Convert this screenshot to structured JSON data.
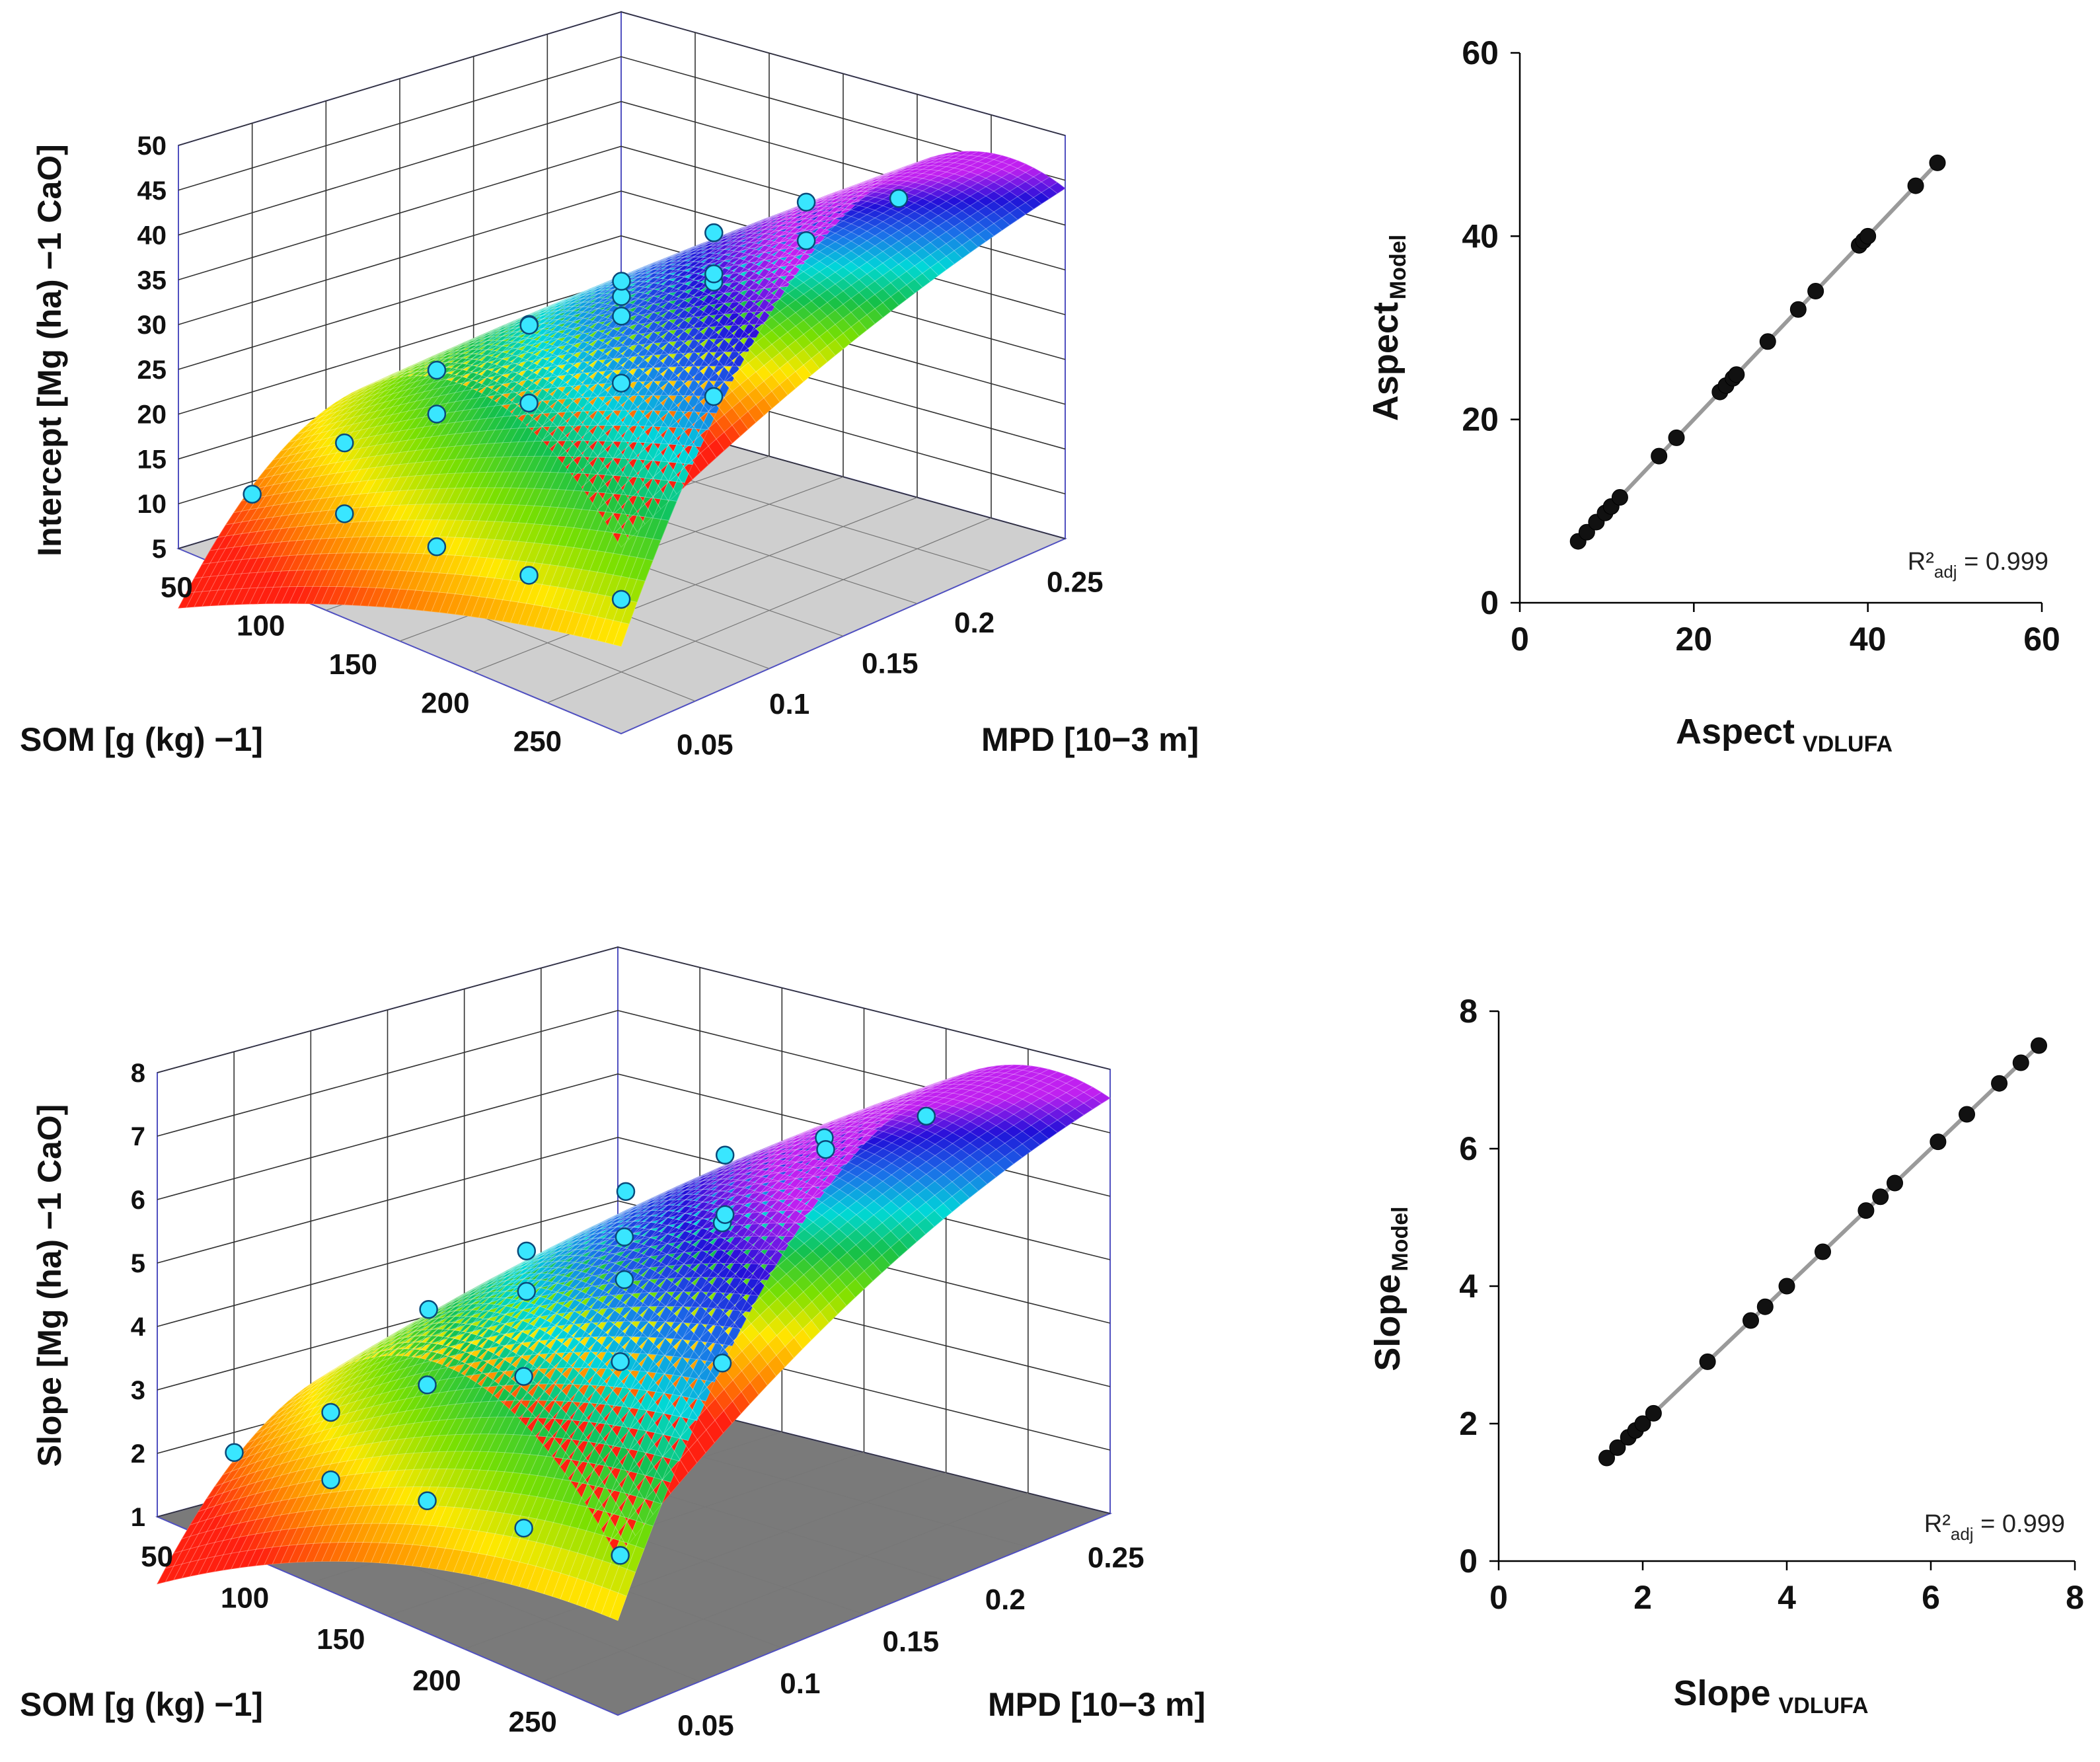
{
  "chart_data": [
    {
      "id": "surface-intercept",
      "type": "surface3d",
      "zlabel": "Intercept  [Mg (ha) −1 CaO]",
      "xlabel": "SOM [g (kg) −1]",
      "ylabel": "MPD [10−3 m]",
      "x_ticks": [
        "50",
        "100",
        "150",
        "200",
        "250"
      ],
      "y_ticks": [
        "0.25",
        "0.2",
        "0.15",
        "0.1",
        "0.05"
      ],
      "z_ticks": [
        "5",
        "10",
        "15",
        "20",
        "25",
        "30",
        "35",
        "40",
        "45",
        "50"
      ],
      "xlim": [
        30,
        270
      ],
      "ylim": [
        0.03,
        0.27
      ],
      "zlim": [
        5,
        50
      ],
      "colormap": [
        "#ff2010",
        "#ff8a00",
        "#ffe800",
        "#7ae000",
        "#14c04a",
        "#00d8d8",
        "#1a70e8",
        "#2010d8",
        "#c020f0"
      ],
      "points": [
        {
          "x": 50,
          "y": 0.05,
          "z": 11.5
        },
        {
          "x": 100,
          "y": 0.05,
          "z": 13.5
        },
        {
          "x": 150,
          "y": 0.05,
          "z": 14.0
        },
        {
          "x": 200,
          "y": 0.05,
          "z": 15.0
        },
        {
          "x": 250,
          "y": 0.05,
          "z": 16.5
        },
        {
          "x": 50,
          "y": 0.1,
          "z": 14.0
        },
        {
          "x": 100,
          "y": 0.1,
          "z": 26.0
        },
        {
          "x": 150,
          "y": 0.1,
          "z": 35.0
        },
        {
          "x": 200,
          "y": 0.1,
          "z": 42.0
        },
        {
          "x": 250,
          "y": 0.1,
          "z": 47.5
        },
        {
          "x": 50,
          "y": 0.15,
          "z": 14.0
        },
        {
          "x": 100,
          "y": 0.15,
          "z": 27.5
        },
        {
          "x": 150,
          "y": 0.15,
          "z": 36.0
        },
        {
          "x": 200,
          "y": 0.15,
          "z": 45.0
        },
        {
          "x": 250,
          "y": 0.15,
          "z": 52.0
        },
        {
          "x": 50,
          "y": 0.2,
          "z": 12.0
        },
        {
          "x": 100,
          "y": 0.2,
          "z": 25.0
        },
        {
          "x": 150,
          "y": 0.2,
          "z": 33.0
        },
        {
          "x": 200,
          "y": 0.2,
          "z": 40.0
        },
        {
          "x": 250,
          "y": 0.2,
          "z": 48.0
        },
        {
          "x": 50,
          "y": 0.25,
          "z": 11.0
        },
        {
          "x": 100,
          "y": 0.25,
          "z": 12.5
        }
      ]
    },
    {
      "id": "scatter-aspect",
      "type": "scatter",
      "xlabel": "Aspect",
      "xlabel_sub": "VDLUFA",
      "ylabel": "Aspect",
      "ylabel_sub": "Model",
      "xlim": [
        0,
        60
      ],
      "ylim": [
        0,
        60
      ],
      "x_ticks": [
        0,
        20,
        40,
        60
      ],
      "y_ticks": [
        0,
        20,
        40,
        60
      ],
      "annotation": {
        "prefix": "R²",
        "sub": "adj",
        "suffix": " = 0.999"
      },
      "fit_line": [
        [
          6.5,
          6.5
        ],
        [
          48,
          48
        ]
      ],
      "x": [
        6.7,
        7.7,
        8.8,
        9.8,
        10.5,
        11.5,
        16,
        18,
        23,
        23.7,
        24.5,
        24.9,
        28.5,
        32,
        34,
        39,
        39.5,
        40,
        45.5,
        48
      ],
      "y": [
        6.7,
        7.7,
        8.8,
        9.8,
        10.5,
        11.5,
        16,
        18,
        23,
        23.7,
        24.5,
        24.9,
        28.5,
        32,
        34,
        39,
        39.5,
        40,
        45.5,
        48
      ]
    },
    {
      "id": "surface-slope",
      "type": "surface3d",
      "zlabel": "Slope [Mg (ha) −1 CaO]",
      "xlabel": "SOM [g (kg) −1]",
      "ylabel": "MPD [10−3 m]",
      "x_ticks": [
        "50",
        "100",
        "150",
        "200",
        "250"
      ],
      "y_ticks": [
        "0.25",
        "0.2",
        "0.15",
        "0.1",
        "0.05"
      ],
      "z_ticks": [
        "1",
        "2",
        "3",
        "4",
        "5",
        "6",
        "7",
        "8"
      ],
      "xlim": [
        30,
        270
      ],
      "ylim": [
        0.03,
        0.27
      ],
      "zlim": [
        1,
        8
      ],
      "colormap": [
        "#ff2010",
        "#ff8a00",
        "#ffe800",
        "#7ae000",
        "#14c04a",
        "#00d8d8",
        "#1a70e8",
        "#2010d8",
        "#c020f0"
      ],
      "points": [
        {
          "x": 50,
          "y": 0.05,
          "z": 2.1
        },
        {
          "x": 100,
          "y": 0.05,
          "z": 2.3
        },
        {
          "x": 150,
          "y": 0.05,
          "z": 2.6
        },
        {
          "x": 200,
          "y": 0.05,
          "z": 2.8
        },
        {
          "x": 250,
          "y": 0.05,
          "z": 3.0
        },
        {
          "x": 50,
          "y": 0.1,
          "z": 2.3
        },
        {
          "x": 100,
          "y": 0.1,
          "z": 4.5
        },
        {
          "x": 150,
          "y": 0.1,
          "z": 6.0
        },
        {
          "x": 200,
          "y": 0.1,
          "z": 6.8
        },
        {
          "x": 250,
          "y": 0.1,
          "z": 7.6
        },
        {
          "x": 50,
          "y": 0.15,
          "z": 2.3
        },
        {
          "x": 100,
          "y": 0.15,
          "z": 4.3
        },
        {
          "x": 150,
          "y": 0.15,
          "z": 6.4
        },
        {
          "x": 200,
          "y": 0.15,
          "z": 7.5
        },
        {
          "x": 250,
          "y": 0.15,
          "z": 8.3
        },
        {
          "x": 50,
          "y": 0.2,
          "z": 2.0
        },
        {
          "x": 100,
          "y": 0.2,
          "z": 4.0
        },
        {
          "x": 150,
          "y": 0.2,
          "z": 5.5
        },
        {
          "x": 200,
          "y": 0.2,
          "z": 7.0
        },
        {
          "x": 250,
          "y": 0.2,
          "z": 8.0
        },
        {
          "x": 50,
          "y": 0.25,
          "z": 1.8
        },
        {
          "x": 100,
          "y": 0.25,
          "z": 2.2
        }
      ]
    },
    {
      "id": "scatter-slope",
      "type": "scatter",
      "xlabel": "Slope",
      "xlabel_sub": "VDLUFA",
      "ylabel": "Slope",
      "ylabel_sub": "Model",
      "xlim": [
        0,
        8
      ],
      "ylim": [
        0,
        8
      ],
      "x_ticks": [
        0,
        2,
        4,
        6,
        8
      ],
      "y_ticks": [
        0,
        2,
        4,
        6,
        8
      ],
      "annotation": {
        "prefix": "R²",
        "sub": "adj",
        "suffix": " = 0.999"
      },
      "fit_line": [
        [
          1.45,
          1.45
        ],
        [
          7.55,
          7.55
        ]
      ],
      "x": [
        1.5,
        1.65,
        1.8,
        1.9,
        2.0,
        2.15,
        2.9,
        3.5,
        3.7,
        4.0,
        4.5,
        5.1,
        5.3,
        5.5,
        6.1,
        6.5,
        6.95,
        7.25,
        7.5
      ],
      "y": [
        1.5,
        1.65,
        1.8,
        1.9,
        2.0,
        2.15,
        2.9,
        3.5,
        3.7,
        4.0,
        4.5,
        5.1,
        5.3,
        5.5,
        6.1,
        6.5,
        6.95,
        7.25,
        7.5
      ]
    }
  ]
}
